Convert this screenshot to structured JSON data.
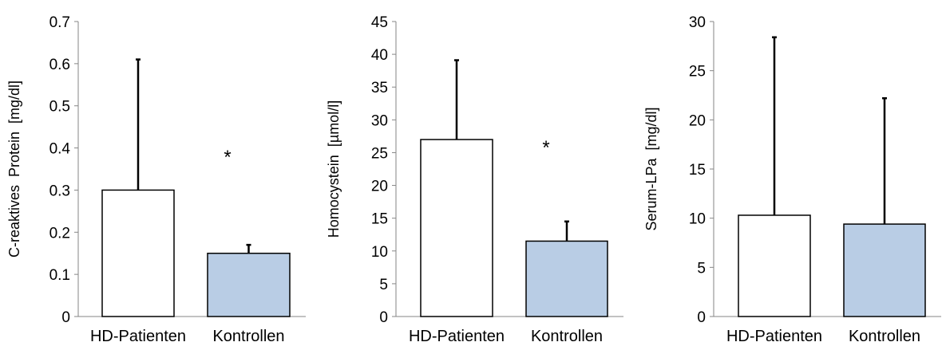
{
  "chart_data": [
    {
      "type": "bar",
      "ylabel": "C-reaktives  Protein  [mg/dl]",
      "categories": [
        "HD-Patienten",
        "Kontrollen"
      ],
      "values": [
        0.3,
        0.15
      ],
      "error_plus": [
        0.31,
        0.02
      ],
      "ylim": [
        0,
        0.7
      ],
      "yticks": [
        "0",
        "0.1",
        "0.2",
        "0.3",
        "0.4",
        "0.5",
        "0.6",
        "0.7"
      ],
      "annotation": "*",
      "colors": [
        "#ffffff",
        "#b9cde5"
      ]
    },
    {
      "type": "bar",
      "ylabel": "Homocystein  [µmol/l]",
      "categories": [
        "HD-Patienten",
        "Kontrollen"
      ],
      "values": [
        27.0,
        11.5
      ],
      "error_plus": [
        12.1,
        3.0
      ],
      "ylim": [
        0,
        45
      ],
      "yticks": [
        "0",
        "5",
        "10",
        "15",
        "20",
        "25",
        "30",
        "35",
        "40",
        "45"
      ],
      "annotation": "*",
      "colors": [
        "#ffffff",
        "#b9cde5"
      ]
    },
    {
      "type": "bar",
      "ylabel": "Serum-LPa  [mg/dl]",
      "categories": [
        "HD-Patienten",
        "Kontrollen"
      ],
      "values": [
        10.3,
        9.4
      ],
      "error_plus": [
        18.1,
        12.8
      ],
      "ylim": [
        0,
        30
      ],
      "yticks": [
        "0",
        "5",
        "10",
        "15",
        "20",
        "25",
        "30"
      ],
      "annotation": "",
      "colors": [
        "#ffffff",
        "#b9cde5"
      ]
    }
  ]
}
